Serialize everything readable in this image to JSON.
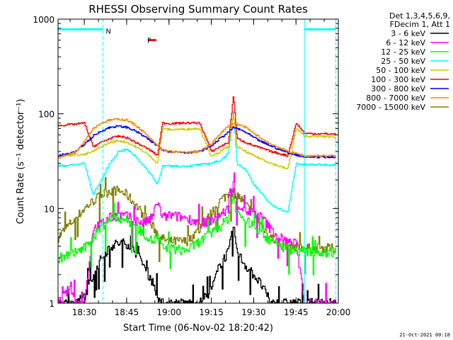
{
  "chart_data": {
    "type": "line",
    "title": "RHESSI Observing Summary Count Rates",
    "xlabel": "Start Time (06-Nov-02 18:20:42)",
    "ylabel": "Count Rate (s⁻¹ detector⁻¹)",
    "yscale": "log",
    "xlim": [
      18.345,
      20.0
    ],
    "ylim": [
      1,
      1000
    ],
    "x_ticks": [
      {
        "v": 18.5,
        "label": "18:30"
      },
      {
        "v": 18.75,
        "label": "18:45"
      },
      {
        "v": 19.0,
        "label": "19:00"
      },
      {
        "v": 19.25,
        "label": "19:15"
      },
      {
        "v": 19.5,
        "label": "19:30"
      },
      {
        "v": 19.75,
        "label": "19:45"
      },
      {
        "v": 20.0,
        "label": "20:00"
      }
    ],
    "y_ticks": [
      {
        "v": 1,
        "label": "1"
      },
      {
        "v": 10,
        "label": "10"
      },
      {
        "v": 100,
        "label": "100"
      },
      {
        "v": 1000,
        "label": "1000"
      }
    ],
    "legend_header": [
      "Det 1,3,4,5,6,9,",
      "FDecim 1, Att 1"
    ],
    "legend_position": "right",
    "timestamp": "21-Oct-2021 00:18",
    "annotations": [
      {
        "label": "N",
        "x": 18.61,
        "y": 750,
        "color": "#00ffff"
      },
      {
        "label": "F",
        "x": 18.855,
        "y": 600,
        "color": "#ff0000"
      }
    ],
    "night_bars": [
      {
        "x0": 18.345,
        "x1": 18.61,
        "y": 780
      },
      {
        "x0": 19.8,
        "x1": 19.985,
        "y": 780
      }
    ],
    "flare_bar": {
      "x0": 18.875,
      "x1": 18.925,
      "y": 600
    },
    "dashed_lines": [
      18.61,
      19.985
    ],
    "solid_lines": [
      18.345,
      19.8
    ],
    "series": [
      {
        "name": "3 - 6 keV",
        "color": "#000000",
        "points": [
          [
            18.345,
            1
          ],
          [
            18.45,
            1
          ],
          [
            18.5,
            1.2
          ],
          [
            18.55,
            2
          ],
          [
            18.6,
            3
          ],
          [
            18.65,
            4
          ],
          [
            18.7,
            4.3
          ],
          [
            18.75,
            4.3
          ],
          [
            18.8,
            3.5
          ],
          [
            18.85,
            2.5
          ],
          [
            18.9,
            1.7
          ],
          [
            18.95,
            1
          ],
          [
            19.0,
            1
          ],
          [
            19.1,
            1
          ],
          [
            19.18,
            1
          ],
          [
            19.25,
            1.4
          ],
          [
            19.3,
            2.6
          ],
          [
            19.35,
            3.5
          ],
          [
            19.38,
            6.5
          ],
          [
            19.4,
            3.5
          ],
          [
            19.45,
            2.5
          ],
          [
            19.5,
            2
          ],
          [
            19.55,
            1.5
          ],
          [
            19.6,
            1
          ],
          [
            19.65,
            1
          ],
          [
            19.7,
            1
          ],
          [
            19.75,
            1
          ],
          [
            19.8,
            1
          ],
          [
            19.985,
            1
          ]
        ]
      },
      {
        "name": "6 - 12 keV",
        "color": "#ff00ff",
        "points": [
          [
            18.345,
            1
          ],
          [
            18.42,
            1.5
          ],
          [
            18.45,
            1
          ],
          [
            18.5,
            1
          ],
          [
            18.55,
            6
          ],
          [
            18.6,
            7
          ],
          [
            18.65,
            8
          ],
          [
            18.7,
            8.5
          ],
          [
            18.75,
            8.3
          ],
          [
            18.8,
            7.5
          ],
          [
            18.85,
            7
          ],
          [
            18.9,
            8
          ],
          [
            18.93,
            12
          ],
          [
            18.96,
            8
          ],
          [
            19.0,
            8.5
          ],
          [
            19.1,
            8
          ],
          [
            19.18,
            7
          ],
          [
            19.25,
            7.5
          ],
          [
            19.3,
            8.5
          ],
          [
            19.35,
            10
          ],
          [
            19.38,
            18
          ],
          [
            19.4,
            11
          ],
          [
            19.45,
            9.5
          ],
          [
            19.5,
            9
          ],
          [
            19.55,
            8
          ],
          [
            19.6,
            6
          ],
          [
            19.65,
            5
          ],
          [
            19.7,
            4.5
          ],
          [
            19.75,
            4.2
          ],
          [
            19.8,
            1
          ],
          [
            19.985,
            1
          ]
        ]
      },
      {
        "name": "12 - 25 keV",
        "color": "#00ff00",
        "points": [
          [
            18.345,
            3
          ],
          [
            18.4,
            3.2
          ],
          [
            18.45,
            3.5
          ],
          [
            18.5,
            3.8
          ],
          [
            18.55,
            5
          ],
          [
            18.6,
            6.5
          ],
          [
            18.65,
            7.8
          ],
          [
            18.7,
            8
          ],
          [
            18.75,
            7.5
          ],
          [
            18.8,
            6.5
          ],
          [
            18.85,
            5.5
          ],
          [
            18.9,
            4.5
          ],
          [
            18.93,
            5
          ],
          [
            18.96,
            3.8
          ],
          [
            19.0,
            3.8
          ],
          [
            19.1,
            3.6
          ],
          [
            19.18,
            4.5
          ],
          [
            19.25,
            5.5
          ],
          [
            19.3,
            6.5
          ],
          [
            19.35,
            8
          ],
          [
            19.38,
            14
          ],
          [
            19.4,
            9
          ],
          [
            19.45,
            7.5
          ],
          [
            19.5,
            6.5
          ],
          [
            19.55,
            5.5
          ],
          [
            19.6,
            4.5
          ],
          [
            19.65,
            4
          ],
          [
            19.7,
            3.8
          ],
          [
            19.75,
            3.6
          ],
          [
            19.8,
            3.5
          ],
          [
            19.985,
            3.5
          ]
        ]
      },
      {
        "name": "25 - 50 keV",
        "color": "#00ffff",
        "points": [
          [
            18.345,
            28
          ],
          [
            18.45,
            29
          ],
          [
            18.5,
            30
          ],
          [
            18.55,
            14
          ],
          [
            18.6,
            20
          ],
          [
            18.65,
            30
          ],
          [
            18.7,
            40
          ],
          [
            18.75,
            42
          ],
          [
            18.8,
            36
          ],
          [
            18.85,
            28
          ],
          [
            18.9,
            22
          ],
          [
            18.93,
            18
          ],
          [
            18.96,
            28
          ],
          [
            19.0,
            28
          ],
          [
            19.1,
            28
          ],
          [
            19.18,
            29
          ],
          [
            19.25,
            30
          ],
          [
            19.3,
            32
          ],
          [
            19.35,
            38
          ],
          [
            19.38,
            110
          ],
          [
            19.4,
            30
          ],
          [
            19.45,
            26
          ],
          [
            19.5,
            18
          ],
          [
            19.55,
            14
          ],
          [
            19.6,
            11
          ],
          [
            19.65,
            10
          ],
          [
            19.7,
            9
          ],
          [
            19.75,
            30
          ],
          [
            19.8,
            29
          ],
          [
            19.985,
            29
          ]
        ]
      },
      {
        "name": "50 - 100 keV",
        "color": "#cccc00",
        "points": [
          [
            18.345,
            36
          ],
          [
            18.45,
            37
          ],
          [
            18.5,
            37
          ],
          [
            18.55,
            40
          ],
          [
            18.6,
            45
          ],
          [
            18.65,
            50
          ],
          [
            18.7,
            52
          ],
          [
            18.75,
            50
          ],
          [
            18.8,
            45
          ],
          [
            18.85,
            40
          ],
          [
            18.9,
            34
          ],
          [
            18.93,
            30
          ],
          [
            18.96,
            70
          ],
          [
            19.0,
            68
          ],
          [
            19.1,
            69
          ],
          [
            19.18,
            70
          ],
          [
            19.25,
            35
          ],
          [
            19.3,
            40
          ],
          [
            19.35,
            45
          ],
          [
            19.38,
            100
          ],
          [
            19.4,
            45
          ],
          [
            19.45,
            40
          ],
          [
            19.5,
            36
          ],
          [
            19.55,
            33
          ],
          [
            19.6,
            30
          ],
          [
            19.65,
            28
          ],
          [
            19.7,
            26
          ],
          [
            19.75,
            70
          ],
          [
            19.8,
            58
          ],
          [
            19.985,
            57
          ]
        ]
      },
      {
        "name": "100 - 300 keV",
        "color": "#ff0000",
        "points": [
          [
            18.345,
            75
          ],
          [
            18.45,
            78
          ],
          [
            18.5,
            80
          ],
          [
            18.55,
            45
          ],
          [
            18.6,
            50
          ],
          [
            18.65,
            55
          ],
          [
            18.7,
            58
          ],
          [
            18.75,
            56
          ],
          [
            18.8,
            50
          ],
          [
            18.85,
            45
          ],
          [
            18.9,
            40
          ],
          [
            18.93,
            36
          ],
          [
            18.96,
            80
          ],
          [
            19.0,
            79
          ],
          [
            19.1,
            80
          ],
          [
            19.18,
            80
          ],
          [
            19.25,
            40
          ],
          [
            19.3,
            45
          ],
          [
            19.35,
            50
          ],
          [
            19.38,
            160
          ],
          [
            19.4,
            55
          ],
          [
            19.45,
            50
          ],
          [
            19.5,
            46
          ],
          [
            19.55,
            43
          ],
          [
            19.6,
            40
          ],
          [
            19.65,
            38
          ],
          [
            19.7,
            36
          ],
          [
            19.75,
            80
          ],
          [
            19.8,
            62
          ],
          [
            19.985,
            61
          ]
        ]
      },
      {
        "name": "300 - 800 keV",
        "color": "#0000ff",
        "points": [
          [
            18.345,
            36
          ],
          [
            18.45,
            40
          ],
          [
            18.5,
            48
          ],
          [
            18.55,
            58
          ],
          [
            18.6,
            66
          ],
          [
            18.65,
            72
          ],
          [
            18.7,
            74
          ],
          [
            18.75,
            72
          ],
          [
            18.8,
            66
          ],
          [
            18.85,
            58
          ],
          [
            18.9,
            50
          ],
          [
            18.93,
            46
          ],
          [
            18.96,
            42
          ],
          [
            19.0,
            40
          ],
          [
            19.1,
            39
          ],
          [
            19.18,
            40
          ],
          [
            19.25,
            46
          ],
          [
            19.3,
            55
          ],
          [
            19.35,
            64
          ],
          [
            19.38,
            72
          ],
          [
            19.4,
            70
          ],
          [
            19.45,
            64
          ],
          [
            19.5,
            56
          ],
          [
            19.55,
            50
          ],
          [
            19.6,
            46
          ],
          [
            19.65,
            42
          ],
          [
            19.7,
            39
          ],
          [
            19.75,
            37
          ],
          [
            19.8,
            35
          ],
          [
            19.985,
            35
          ]
        ]
      },
      {
        "name": "800 - 7000 keV",
        "color": "#ff8800",
        "points": [
          [
            18.345,
            34
          ],
          [
            18.45,
            40
          ],
          [
            18.5,
            52
          ],
          [
            18.55,
            70
          ],
          [
            18.6,
            80
          ],
          [
            18.65,
            86
          ],
          [
            18.7,
            88
          ],
          [
            18.75,
            86
          ],
          [
            18.8,
            76
          ],
          [
            18.85,
            64
          ],
          [
            18.9,
            52
          ],
          [
            18.93,
            46
          ],
          [
            18.96,
            42
          ],
          [
            19.0,
            40
          ],
          [
            19.1,
            39
          ],
          [
            19.18,
            40
          ],
          [
            19.25,
            48
          ],
          [
            19.3,
            62
          ],
          [
            19.35,
            74
          ],
          [
            19.38,
            80
          ],
          [
            19.4,
            78
          ],
          [
            19.45,
            72
          ],
          [
            19.5,
            62
          ],
          [
            19.55,
            54
          ],
          [
            19.6,
            48
          ],
          [
            19.65,
            44
          ],
          [
            19.7,
            40
          ],
          [
            19.75,
            38
          ],
          [
            19.8,
            36
          ],
          [
            19.985,
            36
          ]
        ]
      },
      {
        "name": "7000 - 15000 keV",
        "color": "#808000",
        "points": [
          [
            18.345,
            5
          ],
          [
            18.4,
            6.5
          ],
          [
            18.45,
            8
          ],
          [
            18.5,
            10
          ],
          [
            18.55,
            12
          ],
          [
            18.6,
            14
          ],
          [
            18.65,
            15.5
          ],
          [
            18.7,
            15.5
          ],
          [
            18.75,
            14
          ],
          [
            18.8,
            11
          ],
          [
            18.85,
            8.5
          ],
          [
            18.9,
            6.5
          ],
          [
            18.93,
            5.5
          ],
          [
            18.96,
            4.8
          ],
          [
            19.0,
            4.5
          ],
          [
            19.1,
            4.5
          ],
          [
            19.18,
            6
          ],
          [
            19.25,
            9
          ],
          [
            19.3,
            12
          ],
          [
            19.35,
            14.5
          ],
          [
            19.38,
            15
          ],
          [
            19.4,
            14
          ],
          [
            19.45,
            11
          ],
          [
            19.5,
            8.5
          ],
          [
            19.55,
            6.5
          ],
          [
            19.6,
            5
          ],
          [
            19.65,
            4.2
          ],
          [
            19.7,
            4
          ],
          [
            19.75,
            4
          ],
          [
            19.8,
            3.8
          ],
          [
            19.985,
            3.8
          ]
        ]
      }
    ]
  }
}
